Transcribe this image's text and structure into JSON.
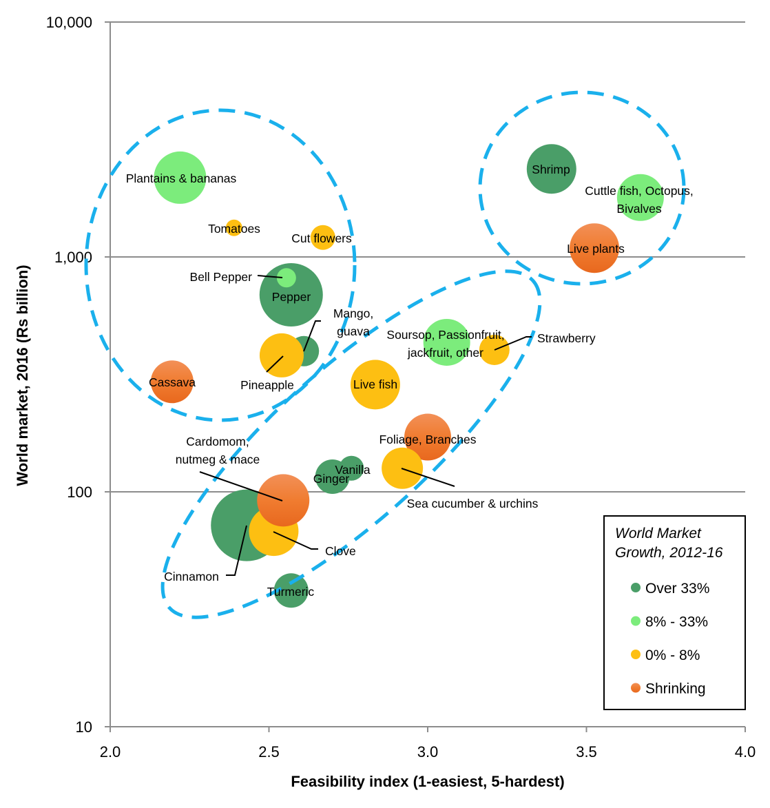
{
  "chart_data": {
    "type": "scatter",
    "subtype": "bubble",
    "title": "",
    "xlabel": "Feasibility index (1-easiest, 5-hardest)",
    "ylabel": "World market, 2016 (Rs billion)",
    "xlim": [
      2.0,
      4.0
    ],
    "ylim": [
      10,
      10000
    ],
    "y_scale": "log",
    "x_ticks": [
      "2.0",
      "2.5",
      "3.0",
      "3.5",
      "4.0"
    ],
    "y_ticks": [
      "10",
      "100",
      "1,000",
      "10,000"
    ],
    "grid": "horizontal",
    "legend": {
      "title": "World Market Growth, 2012-16",
      "title_lines": [
        "World Market",
        "Growth, 2012-16"
      ],
      "placement": "bottom-right",
      "entries": [
        {
          "label": "Over 33%",
          "color": "#4a9e68"
        },
        {
          "label": "8% - 33%",
          "color": "#7cec7c"
        },
        {
          "label": "0% - 8%",
          "color": "#fdbf12"
        },
        {
          "label": "Shrinking",
          "color": "#ef7a30"
        }
      ]
    },
    "points": [
      {
        "label": [
          "Plantains & bananas"
        ],
        "x": 2.22,
        "y": 2175,
        "size": 38,
        "group": "8% - 33%"
      },
      {
        "label": [
          "Tomatoes"
        ],
        "x": 2.39,
        "y": 1330,
        "size": 12,
        "group": "0% - 8%"
      },
      {
        "label": [
          "Cut flowers"
        ],
        "x": 2.67,
        "y": 1210,
        "size": 18,
        "group": "0% - 8%"
      },
      {
        "label": [
          "Pepper"
        ],
        "x": 2.57,
        "y": 690,
        "size": 46,
        "group": "Over 33%"
      },
      {
        "label": [
          "Bell Pepper"
        ],
        "x": 2.555,
        "y": 815,
        "size": 14,
        "group": "8% - 33%"
      },
      {
        "label": [
          "Mango,",
          "guava"
        ],
        "x": 2.61,
        "y": 397,
        "size": 22,
        "group": "Over 33%"
      },
      {
        "label": [
          "Pineapple"
        ],
        "x": 2.54,
        "y": 381,
        "size": 32,
        "group": "0% - 8%"
      },
      {
        "label": [
          "Cassava"
        ],
        "x": 2.195,
        "y": 294,
        "size": 31,
        "group": "Shrinking"
      },
      {
        "label": [
          "Live fish"
        ],
        "x": 2.835,
        "y": 286,
        "size": 36,
        "group": "0% - 8%"
      },
      {
        "label": [
          "Soursop, Passionfruit,",
          "jackfruit, other"
        ],
        "x": 3.06,
        "y": 433,
        "size": 34,
        "group": "8% - 33%"
      },
      {
        "label": [
          "Strawberry"
        ],
        "x": 3.21,
        "y": 402,
        "size": 22,
        "group": "0% - 8%"
      },
      {
        "label": [
          "Shrimp"
        ],
        "x": 3.39,
        "y": 2370,
        "size": 36,
        "group": "Over 33%"
      },
      {
        "label": [
          "Cuttle fish, Octopus,",
          "Bivalves"
        ],
        "x": 3.67,
        "y": 1790,
        "size": 34,
        "group": "8% - 33%"
      },
      {
        "label": [
          "Live plants"
        ],
        "x": 3.525,
        "y": 1090,
        "size": 36,
        "group": "Shrinking"
      },
      {
        "label": [
          "Foliage, Branches"
        ],
        "x": 3.0,
        "y": 171,
        "size": 34,
        "group": "Shrinking"
      },
      {
        "label": [
          "Sea cucumber & urchins"
        ],
        "x": 2.92,
        "y": 126,
        "size": 30,
        "group": "0% - 8%"
      },
      {
        "label": [
          "Vanilla"
        ],
        "x": 2.76,
        "y": 126,
        "size": 18,
        "group": "Over 33%"
      },
      {
        "label": [
          "Ginger"
        ],
        "x": 2.7,
        "y": 116,
        "size": 25,
        "group": "Over 33%"
      },
      {
        "label": [
          "Cinnamon"
        ],
        "x": 2.43,
        "y": 72,
        "size": 52,
        "group": "Over 33%"
      },
      {
        "label": [
          "Clove"
        ],
        "x": 2.515,
        "y": 68,
        "size": 36,
        "group": "0% - 8%"
      },
      {
        "label": [
          "Cardomom,",
          "nutmeg & mace"
        ],
        "x": 2.545,
        "y": 92,
        "size": 38,
        "group": "Shrinking"
      },
      {
        "label": [
          "Turmeric"
        ],
        "x": 2.57,
        "y": 38,
        "size": 25,
        "group": "Over 33%"
      }
    ]
  }
}
